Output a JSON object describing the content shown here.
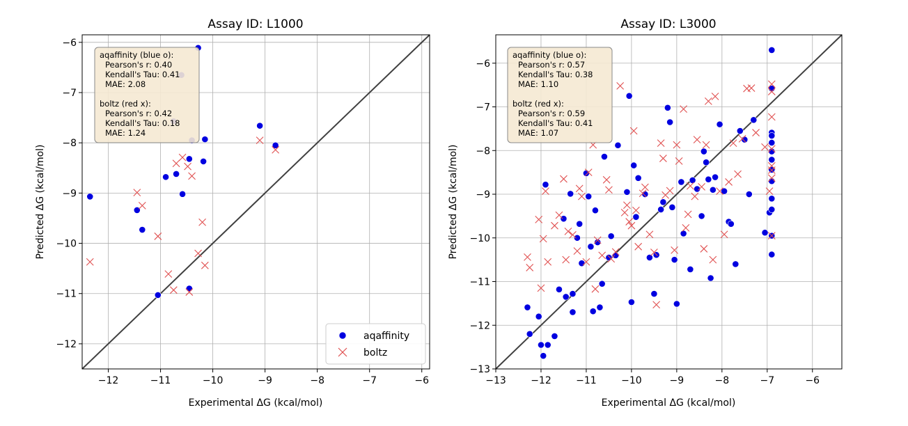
{
  "chart_data": [
    {
      "type": "scatter",
      "title": "Assay ID: L1000",
      "xlabel": "Experimental ΔG (kcal/mol)",
      "ylabel": "Predicted ΔG (kcal/mol)",
      "xlim": [
        -12.5,
        -5.85
      ],
      "ylim": [
        -12.5,
        -5.85
      ],
      "xticks": [
        -12,
        -11,
        -10,
        -9,
        -8,
        -7,
        -6
      ],
      "yticks": [
        -12,
        -11,
        -10,
        -9,
        -8,
        -7,
        -6
      ],
      "tick_labels": [
        "−12",
        "−11",
        "−10",
        "−9",
        "−8",
        "−7",
        "−6"
      ],
      "grid": true,
      "legend": {
        "placement": "lower-right",
        "entries": [
          "aqaffinity",
          "boltz"
        ]
      },
      "stats_box": [
        "aqaffinity (blue o):",
        "Pearson's r: 0.40",
        "Kendall's Tau: 0.41",
        "MAE: 2.08",
        "boltz (red x):",
        "Pearson's r: 0.42",
        "Kendall's Tau: 0.18",
        "MAE: 1.24"
      ],
      "series": [
        {
          "name": "aqaffinity",
          "marker": "o",
          "color": "#0000e0",
          "x": [
            -12.35,
            -11.45,
            -11.35,
            -11.05,
            -10.9,
            -10.75,
            -10.7,
            -10.6,
            -10.58,
            -10.45,
            -10.45,
            -10.4,
            -10.28,
            -10.18,
            -10.15,
            -9.1,
            -8.8
          ],
          "y": [
            -9.07,
            -9.34,
            -9.73,
            -11.03,
            -8.68,
            -7.57,
            -8.62,
            -6.65,
            -9.02,
            -8.32,
            -10.9,
            -7.95,
            -6.11,
            -8.37,
            -7.93,
            -7.66,
            -8.05
          ]
        },
        {
          "name": "boltz",
          "marker": "x",
          "color": "#e05050",
          "x": [
            -12.35,
            -11.45,
            -11.35,
            -11.05,
            -10.85,
            -10.75,
            -10.7,
            -10.58,
            -10.48,
            -10.45,
            -10.4,
            -10.28,
            -10.2,
            -10.15,
            -9.1,
            -8.8
          ],
          "y": [
            -10.37,
            -8.99,
            -9.25,
            -9.86,
            -10.61,
            -10.93,
            -8.41,
            -8.29,
            -8.47,
            -10.97,
            -8.66,
            -10.2,
            -9.58,
            -10.44,
            -7.95,
            -8.14
          ]
        }
      ]
    },
    {
      "type": "scatter",
      "title": "Assay ID: L3000",
      "xlabel": "Experimental ΔG (kcal/mol)",
      "ylabel": "Predicted ΔG (kcal/mol)",
      "xlim": [
        -13,
        -5.35
      ],
      "ylim": [
        -13,
        -5.35
      ],
      "xticks": [
        -13,
        -12,
        -11,
        -10,
        -9,
        -8,
        -7,
        -6
      ],
      "yticks": [
        -13,
        -12,
        -11,
        -10,
        -9,
        -8,
        -7,
        -6
      ],
      "tick_labels": [
        "−13",
        "−12",
        "−11",
        "−10",
        "−9",
        "−8",
        "−7",
        "−6"
      ],
      "grid": true,
      "stats_box": [
        "aqaffinity (blue o):",
        "Pearson's r: 0.57",
        "Kendall's Tau: 0.38",
        "MAE: 1.10",
        "boltz (red x):",
        "Pearson's r: 0.59",
        "Kendall's Tau: 0.41",
        "MAE: 1.07"
      ],
      "series": [
        {
          "name": "aqaffinity",
          "marker": "o",
          "color": "#0000e0",
          "x": [
            -12.3,
            -12.25,
            -12.05,
            -12.0,
            -11.95,
            -11.9,
            -11.85,
            -11.7,
            -11.6,
            -11.5,
            -11.45,
            -11.35,
            -11.3,
            -11.3,
            -11.2,
            -11.15,
            -11.1,
            -11.0,
            -10.95,
            -10.9,
            -10.85,
            -10.8,
            -10.75,
            -10.7,
            -10.65,
            -10.6,
            -10.5,
            -10.45,
            -10.35,
            -10.3,
            -10.1,
            -10.05,
            -10.0,
            -9.95,
            -9.9,
            -9.85,
            -9.7,
            -9.6,
            -9.5,
            -9.45,
            -9.35,
            -9.3,
            -9.2,
            -9.15,
            -9.1,
            -9.05,
            -9.0,
            -8.9,
            -8.85,
            -8.7,
            -8.65,
            -8.55,
            -8.45,
            -8.4,
            -8.35,
            -8.3,
            -8.25,
            -8.2,
            -8.15,
            -8.05,
            -7.95,
            -7.85,
            -7.8,
            -7.7,
            -7.6,
            -7.5,
            -7.4,
            -7.3,
            -7.05,
            -6.95,
            -6.9,
            -6.9,
            -6.9,
            -6.9,
            -6.9,
            -6.9,
            -6.9,
            -6.9,
            -6.9,
            -6.9,
            -6.9,
            -6.9,
            -6.9
          ],
          "y": [
            -11.59,
            -12.2,
            -11.8,
            -12.45,
            -12.7,
            -8.78,
            -12.45,
            -12.25,
            -11.18,
            -9.56,
            -11.35,
            -8.99,
            -11.7,
            -11.28,
            -10.0,
            -9.68,
            -10.58,
            -8.52,
            -9.05,
            -10.2,
            -11.68,
            -9.37,
            -10.1,
            -11.59,
            -11.05,
            -8.14,
            -10.45,
            -9.96,
            -10.4,
            -7.88,
            -8.95,
            -6.75,
            -11.47,
            -8.34,
            -9.52,
            -8.63,
            -9.0,
            -10.45,
            -11.28,
            -10.39,
            -9.35,
            -9.18,
            -7.02,
            -7.35,
            -9.3,
            -10.5,
            -11.51,
            -8.72,
            -9.9,
            -10.72,
            -8.68,
            -8.88,
            -9.5,
            -8.02,
            -8.27,
            -8.66,
            -10.92,
            -8.9,
            -8.61,
            -7.4,
            -8.93,
            -9.63,
            -9.68,
            -10.6,
            -7.55,
            -7.75,
            -9.0,
            -7.3,
            -9.88,
            -9.42,
            -5.7,
            -6.58,
            -7.59,
            -7.66,
            -7.82,
            -8.02,
            -8.21,
            -8.44,
            -8.7,
            -9.1,
            -9.35,
            -9.95,
            -10.38
          ]
        },
        {
          "name": "boltz",
          "marker": "x",
          "color": "#e05050",
          "x": [
            -12.3,
            -12.25,
            -12.05,
            -12.0,
            -11.95,
            -11.9,
            -11.85,
            -11.7,
            -11.6,
            -11.5,
            -11.45,
            -11.4,
            -11.3,
            -11.2,
            -11.15,
            -11.1,
            -11.0,
            -10.95,
            -10.85,
            -10.8,
            -10.75,
            -10.65,
            -10.55,
            -10.5,
            -10.45,
            -10.35,
            -10.25,
            -10.15,
            -10.1,
            -10.05,
            -10.0,
            -9.95,
            -9.9,
            -9.85,
            -9.75,
            -9.7,
            -9.6,
            -9.5,
            -9.45,
            -9.35,
            -9.3,
            -9.25,
            -9.15,
            -9.05,
            -9.0,
            -8.95,
            -8.85,
            -8.8,
            -8.75,
            -8.7,
            -8.6,
            -8.55,
            -8.45,
            -8.4,
            -8.35,
            -8.3,
            -8.2,
            -8.15,
            -8.05,
            -7.95,
            -7.85,
            -7.75,
            -7.65,
            -7.55,
            -7.45,
            -7.35,
            -7.25,
            -7.05,
            -6.95,
            -6.9,
            -6.9,
            -6.9,
            -6.9,
            -6.9,
            -6.9,
            -6.9,
            -6.9
          ],
          "y": [
            -10.44,
            -10.68,
            -9.58,
            -11.15,
            -10.02,
            -8.93,
            -10.55,
            -9.72,
            -9.48,
            -8.65,
            -10.5,
            -9.85,
            -9.93,
            -10.3,
            -8.87,
            -9.05,
            -10.55,
            -8.5,
            -7.87,
            -11.17,
            -10.05,
            -10.4,
            -8.67,
            -8.9,
            -10.48,
            -10.32,
            -6.52,
            -9.42,
            -9.25,
            -9.63,
            -9.72,
            -7.55,
            -9.37,
            -10.2,
            -8.98,
            -8.84,
            -9.92,
            -10.33,
            -11.53,
            -7.83,
            -8.18,
            -9.02,
            -8.92,
            -10.28,
            -7.87,
            -8.24,
            -7.05,
            -9.77,
            -9.46,
            -8.81,
            -9.05,
            -7.75,
            -8.83,
            -10.25,
            -7.87,
            -6.87,
            -10.5,
            -6.76,
            -8.93,
            -9.92,
            -8.72,
            -7.83,
            -8.54,
            -7.73,
            -6.58,
            -6.57,
            -7.59,
            -7.92,
            -8.93,
            -6.48,
            -7.23,
            -7.96,
            -8.35,
            -8.45,
            -8.63,
            -9.95,
            -6.65
          ]
        }
      ]
    }
  ]
}
